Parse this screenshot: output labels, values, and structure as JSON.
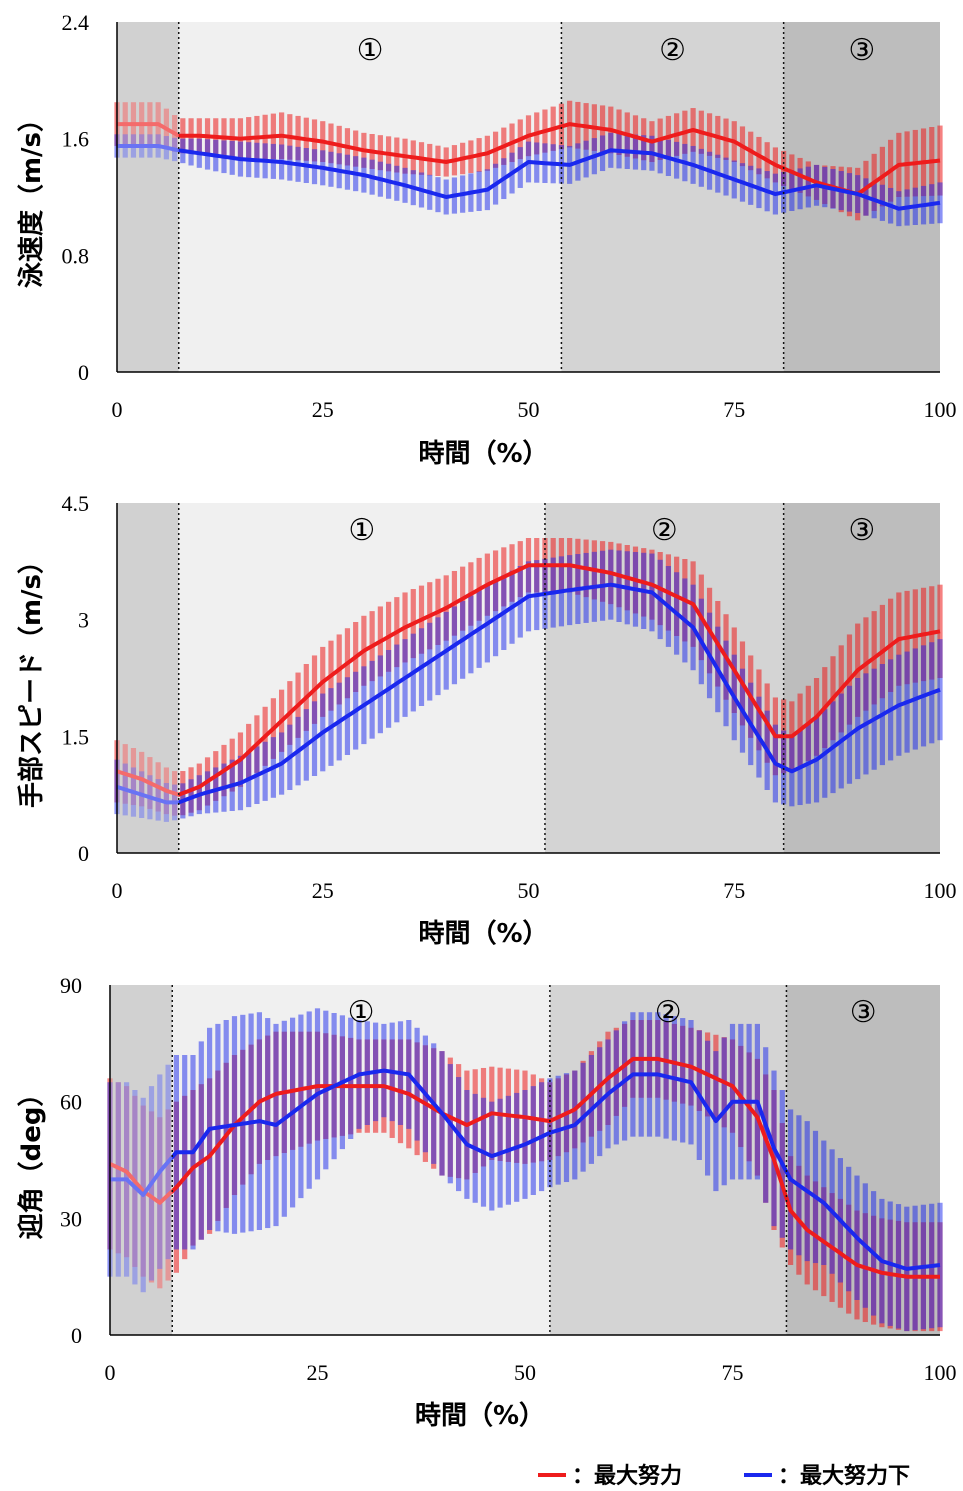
{
  "chart_data": [
    {
      "type": "line",
      "ylabel": "泳速度（m/s）",
      "xlabel": "時間（%）",
      "ylim": [
        0,
        2.4
      ],
      "yticks": [
        "0",
        "0.8",
        "1.6",
        "2.4"
      ],
      "xlim": [
        0,
        100
      ],
      "xticks": [
        "0",
        "25",
        "50",
        "75",
        "100"
      ],
      "phase_boundaries": [
        7.5,
        54,
        81
      ],
      "phase_labels": [
        "①",
        "②",
        "③"
      ],
      "series": [
        {
          "name": "最大努力",
          "color": "#ee1c1c",
          "x": [
            0,
            5,
            7.5,
            10,
            15,
            20,
            25,
            30,
            35,
            40,
            45,
            50,
            55,
            60,
            65,
            70,
            75,
            80,
            85,
            90,
            95,
            100
          ],
          "mean": [
            1.7,
            1.7,
            1.62,
            1.62,
            1.6,
            1.62,
            1.58,
            1.52,
            1.48,
            1.44,
            1.5,
            1.62,
            1.7,
            1.66,
            1.58,
            1.66,
            1.58,
            1.42,
            1.3,
            1.22,
            1.42,
            1.45
          ],
          "sd": [
            0.15,
            0.15,
            0.12,
            0.12,
            0.14,
            0.16,
            0.14,
            0.12,
            0.12,
            0.1,
            0.12,
            0.14,
            0.16,
            0.16,
            0.14,
            0.15,
            0.14,
            0.12,
            0.12,
            0.18,
            0.22,
            0.24
          ]
        },
        {
          "name": "最大努力下",
          "color": "#1a28ee",
          "x": [
            0,
            5,
            7.5,
            10,
            15,
            20,
            25,
            30,
            35,
            40,
            45,
            50,
            55,
            60,
            65,
            70,
            75,
            80,
            85,
            90,
            95,
            100
          ],
          "mean": [
            1.55,
            1.55,
            1.52,
            1.5,
            1.46,
            1.44,
            1.4,
            1.35,
            1.28,
            1.2,
            1.25,
            1.44,
            1.42,
            1.52,
            1.5,
            1.42,
            1.32,
            1.22,
            1.28,
            1.22,
            1.12,
            1.16
          ],
          "sd": [
            0.08,
            0.08,
            0.08,
            0.1,
            0.12,
            0.12,
            0.12,
            0.12,
            0.12,
            0.12,
            0.14,
            0.14,
            0.13,
            0.12,
            0.12,
            0.13,
            0.13,
            0.14,
            0.14,
            0.13,
            0.12,
            0.14
          ]
        }
      ]
    },
    {
      "type": "line",
      "ylabel": "手部スピード（m/s）",
      "xlabel": "時間（%）",
      "ylim": [
        0,
        4.5
      ],
      "yticks": [
        "0",
        "1.5",
        "3",
        "4.5"
      ],
      "xlim": [
        0,
        100
      ],
      "xticks": [
        "0",
        "25",
        "50",
        "75",
        "100"
      ],
      "phase_boundaries": [
        7.5,
        52,
        81
      ],
      "phase_labels": [
        "①",
        "②",
        "③"
      ],
      "series": [
        {
          "name": "最大努力",
          "color": "#ee1c1c",
          "x": [
            0,
            3,
            6,
            7.5,
            10,
            15,
            20,
            25,
            30,
            35,
            40,
            45,
            50,
            55,
            60,
            65,
            70,
            75,
            80,
            82,
            85,
            90,
            95,
            100
          ],
          "mean": [
            1.05,
            0.95,
            0.8,
            0.75,
            0.85,
            1.2,
            1.7,
            2.2,
            2.6,
            2.9,
            3.15,
            3.45,
            3.7,
            3.7,
            3.6,
            3.45,
            3.2,
            2.35,
            1.5,
            1.5,
            1.75,
            2.35,
            2.75,
            2.85
          ],
          "sd": [
            0.4,
            0.35,
            0.3,
            0.28,
            0.3,
            0.35,
            0.4,
            0.45,
            0.45,
            0.45,
            0.42,
            0.4,
            0.35,
            0.35,
            0.4,
            0.45,
            0.55,
            0.55,
            0.5,
            0.45,
            0.5,
            0.6,
            0.6,
            0.6
          ]
        },
        {
          "name": "最大努力下",
          "color": "#1a28ee",
          "x": [
            0,
            3,
            6,
            7.5,
            10,
            15,
            20,
            25,
            30,
            35,
            40,
            45,
            50,
            55,
            60,
            65,
            70,
            75,
            80,
            82,
            85,
            90,
            95,
            100
          ],
          "mean": [
            0.85,
            0.75,
            0.65,
            0.65,
            0.75,
            0.9,
            1.15,
            1.55,
            1.9,
            2.25,
            2.6,
            2.95,
            3.3,
            3.38,
            3.45,
            3.35,
            2.9,
            2.0,
            1.15,
            1.05,
            1.2,
            1.6,
            1.9,
            2.1
          ],
          "sd": [
            0.35,
            0.3,
            0.25,
            0.22,
            0.25,
            0.35,
            0.4,
            0.5,
            0.5,
            0.5,
            0.5,
            0.5,
            0.45,
            0.45,
            0.45,
            0.5,
            0.55,
            0.55,
            0.5,
            0.45,
            0.55,
            0.65,
            0.65,
            0.65
          ]
        }
      ]
    },
    {
      "type": "line",
      "ylabel": "迎角（deg）",
      "xlabel": "時間（%）",
      "ylim": [
        0,
        90
      ],
      "yticks": [
        "0",
        "30",
        "60",
        "90"
      ],
      "xlim": [
        0,
        100
      ],
      "xticks": [
        "0",
        "25",
        "50",
        "75",
        "100"
      ],
      "phase_boundaries": [
        7.5,
        53,
        81.5
      ],
      "phase_labels": [
        "①",
        "②",
        "③"
      ],
      "series": [
        {
          "name": "最大努力",
          "color": "#ee1c1c",
          "x": [
            0,
            2,
            4,
            6,
            8,
            10,
            12,
            15,
            18,
            20,
            25,
            30,
            33,
            36,
            40,
            43,
            46,
            50,
            53,
            56,
            60,
            63,
            66,
            70,
            75,
            78,
            80,
            82,
            84,
            86,
            90,
            93,
            96,
            100
          ],
          "mean": [
            44,
            42,
            37,
            34,
            38,
            43,
            46,
            54,
            60,
            62,
            64,
            64,
            64,
            62,
            57,
            54,
            57,
            56,
            55,
            58,
            66,
            71,
            71,
            69,
            64,
            56,
            45,
            32,
            27,
            24,
            18,
            16,
            15,
            15
          ],
          "sd": [
            22,
            22,
            22,
            22,
            22,
            20,
            20,
            18,
            16,
            16,
            14,
            12,
            12,
            14,
            16,
            14,
            12,
            12,
            10,
            10,
            12,
            10,
            10,
            10,
            12,
            15,
            18,
            14,
            14,
            14,
            14,
            14,
            14,
            14
          ]
        },
        {
          "name": "最大努力下",
          "color": "#1a28ee",
          "x": [
            0,
            2,
            4,
            6,
            8,
            10,
            12,
            15,
            18,
            20,
            25,
            30,
            33,
            36,
            40,
            43,
            46,
            50,
            53,
            56,
            60,
            63,
            66,
            70,
            73,
            75,
            78,
            80,
            82,
            84,
            86,
            90,
            93,
            96,
            100
          ],
          "mean": [
            40,
            40,
            36,
            42,
            47,
            47,
            53,
            54,
            55,
            54,
            62,
            67,
            68,
            67,
            57,
            49,
            46,
            49,
            52,
            54,
            62,
            67,
            67,
            65,
            55,
            60,
            60,
            48,
            40,
            37,
            34,
            25,
            19,
            17,
            18
          ],
          "sd": [
            25,
            25,
            25,
            25,
            25,
            25,
            26,
            28,
            28,
            26,
            22,
            14,
            12,
            14,
            16,
            14,
            14,
            14,
            14,
            14,
            14,
            16,
            16,
            16,
            18,
            20,
            20,
            20,
            18,
            18,
            16,
            16,
            16,
            16,
            16
          ]
        }
      ]
    }
  ],
  "legend": [
    {
      "label": "：最大努力",
      "color": "#ee1c1c"
    },
    {
      "label": "：最大努力下",
      "color": "#1a28ee"
    }
  ]
}
